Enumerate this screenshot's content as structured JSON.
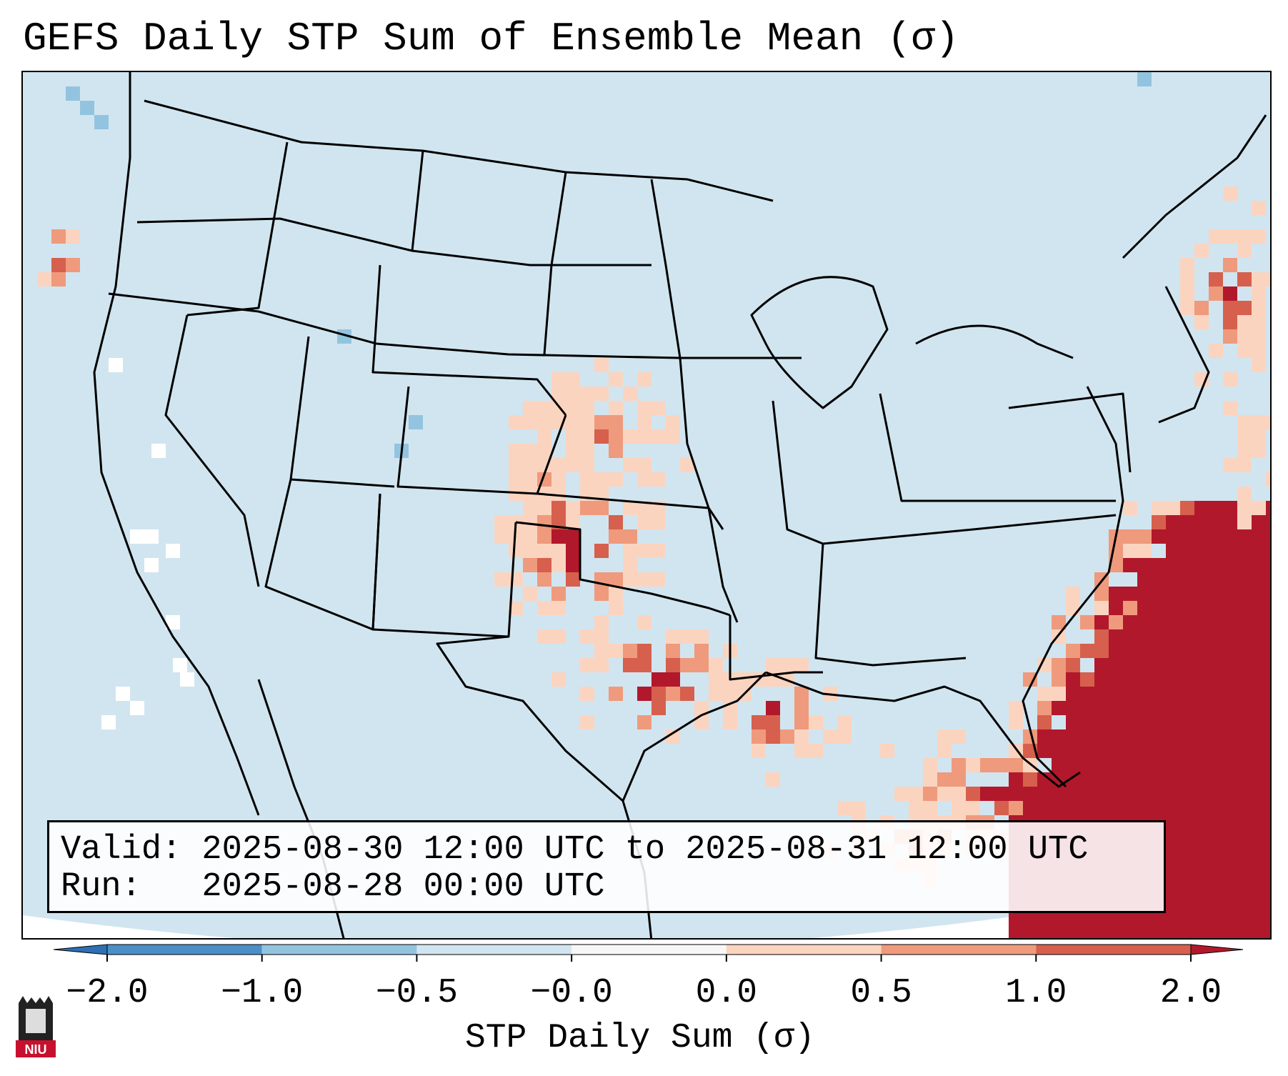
{
  "title": "GEFS Daily STP Sum of Ensemble Mean (σ)",
  "info": {
    "valid_line": "Valid: 2025-08-30 12:00 UTC to 2025-08-31 12:00 UTC",
    "run_line": "Run:   2025-08-28 00:00 UTC"
  },
  "colorbar": {
    "label": "STP Daily Sum (σ)",
    "ticks": [
      "−2.0",
      "−1.0",
      "−0.5",
      "−0.0",
      "0.0",
      "0.5",
      "1.0",
      "2.0"
    ],
    "colors": [
      "#4a8fc8",
      "#93c4df",
      "#d1e5f0",
      "#f7f7f7",
      "#fbd4c0",
      "#ef9a7c",
      "#d6604d",
      "#b2182b"
    ],
    "extend_low_color": "#2f6fb3",
    "extend_high_color": "#b2182b"
  },
  "map": {
    "region": "Contiguous United States",
    "background_color": "#d1e5f0",
    "highlight_colors": {
      "light": "#fbd4c0",
      "medium": "#ef9a7c",
      "strong": "#d6604d",
      "max": "#b2182b",
      "neutral": "#ffffff",
      "negative": "#93c4df"
    }
  },
  "logo": {
    "text": "NIU"
  }
}
